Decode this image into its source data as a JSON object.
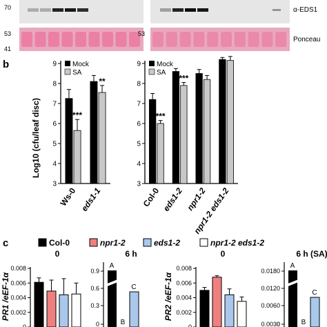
{
  "blot": {
    "mw_left": [
      "70",
      "53",
      "41"
    ],
    "mw_right": [
      "53"
    ],
    "label_top": "α-EDS1",
    "label_bottom": "Ponceau",
    "colors": {
      "ponceau": "#e8a8c0",
      "band": "#ec6f98",
      "blot_bg": "#e6e6e6"
    }
  },
  "panel_b": {
    "letter": "b",
    "ylabel": "Log10 (cfu/leaf disc)",
    "legend": [
      "Mock",
      "SA"
    ],
    "sig": [
      "***",
      "**",
      "***",
      "***"
    ]
  },
  "panel_c": {
    "letter": "c",
    "legend": [
      "Col-0",
      "npr1-2",
      "eds1-2",
      "npr1-2 eds1-2"
    ],
    "colors": [
      "#000000",
      "#f08080",
      "#a9c8ec",
      "#ffffff"
    ],
    "sub_titles": [
      "0",
      "6 h",
      "0",
      "6 h (SA)"
    ],
    "ylabel_left": "PR1 /eEF-1α",
    "ylabel_right": "PR2 /eEF-1α",
    "letters_6h": [
      "A",
      "B",
      "C"
    ],
    "letters_6hsa": [
      "A",
      "B",
      "C"
    ],
    "yticks_left": [
      "0.008",
      "0.006",
      "0.004",
      "0.002",
      "0"
    ],
    "yticks_left2": [
      "0.9",
      "0.6",
      "0.3",
      "0"
    ],
    "yticks_right": [
      "0.008",
      "0.006",
      "0.004",
      "0.002",
      "0"
    ],
    "yticks_right2": [
      "0.0180",
      "0.0120",
      "0.0060",
      "0.0030",
      "0"
    ]
  },
  "chart_data": [
    {
      "type": "bar",
      "title": "",
      "ylabel": "Log10 (cfu/leaf disc)",
      "categories": [
        "Ws-0",
        "eds1-1"
      ],
      "yticks": [
        3,
        4,
        5,
        6,
        7,
        8,
        9
      ],
      "ylim": [
        3,
        9
      ],
      "series": [
        {
          "name": "Mock",
          "values": [
            7.25,
            8.1
          ],
          "errors": [
            0.45,
            0.3
          ]
        },
        {
          "name": "SA",
          "values": [
            5.65,
            7.55
          ],
          "errors": [
            0.55,
            0.35
          ]
        }
      ]
    },
    {
      "type": "bar",
      "title": "",
      "categories": [
        "Col-0",
        "eds1-2",
        "npr1-2",
        "npr1-2 eds1-2"
      ],
      "yticks": [
        3,
        4,
        5,
        6,
        7,
        8,
        9
      ],
      "ylim": [
        3,
        9
      ],
      "series": [
        {
          "name": "Mock",
          "values": [
            7.2,
            8.6,
            8.5,
            9.2
          ],
          "errors": [
            0.3,
            0.15,
            0.2,
            0.1
          ]
        },
        {
          "name": "SA",
          "values": [
            6.0,
            7.9,
            8.2,
            9.15
          ],
          "errors": [
            0.15,
            0.15,
            0.2,
            0.2
          ]
        }
      ]
    },
    {
      "type": "bar",
      "title": "0",
      "ylabel": "PR1 /eEF-1α",
      "categories": [
        "Col-0",
        "npr1-2",
        "eds1-2",
        "npr1-2 eds1-2"
      ],
      "ylim": [
        0,
        0.008
      ],
      "values": [
        0.0061,
        0.0049,
        0.0044,
        0.0045
      ],
      "errors": [
        0.0006,
        0.0015,
        0.0022,
        0.0015
      ]
    },
    {
      "type": "bar",
      "title": "0",
      "ylabel": "PR2 /eEF-1α",
      "categories": [
        "Col-0",
        "npr1-2",
        "eds1-2",
        "npr1-2 eds1-2"
      ],
      "ylim": [
        0,
        0.008
      ],
      "values": [
        0.005,
        0.0068,
        0.0044,
        0.0035
      ],
      "errors": [
        0.0004,
        0.0002,
        0.0008,
        0.0006
      ]
    }
  ]
}
